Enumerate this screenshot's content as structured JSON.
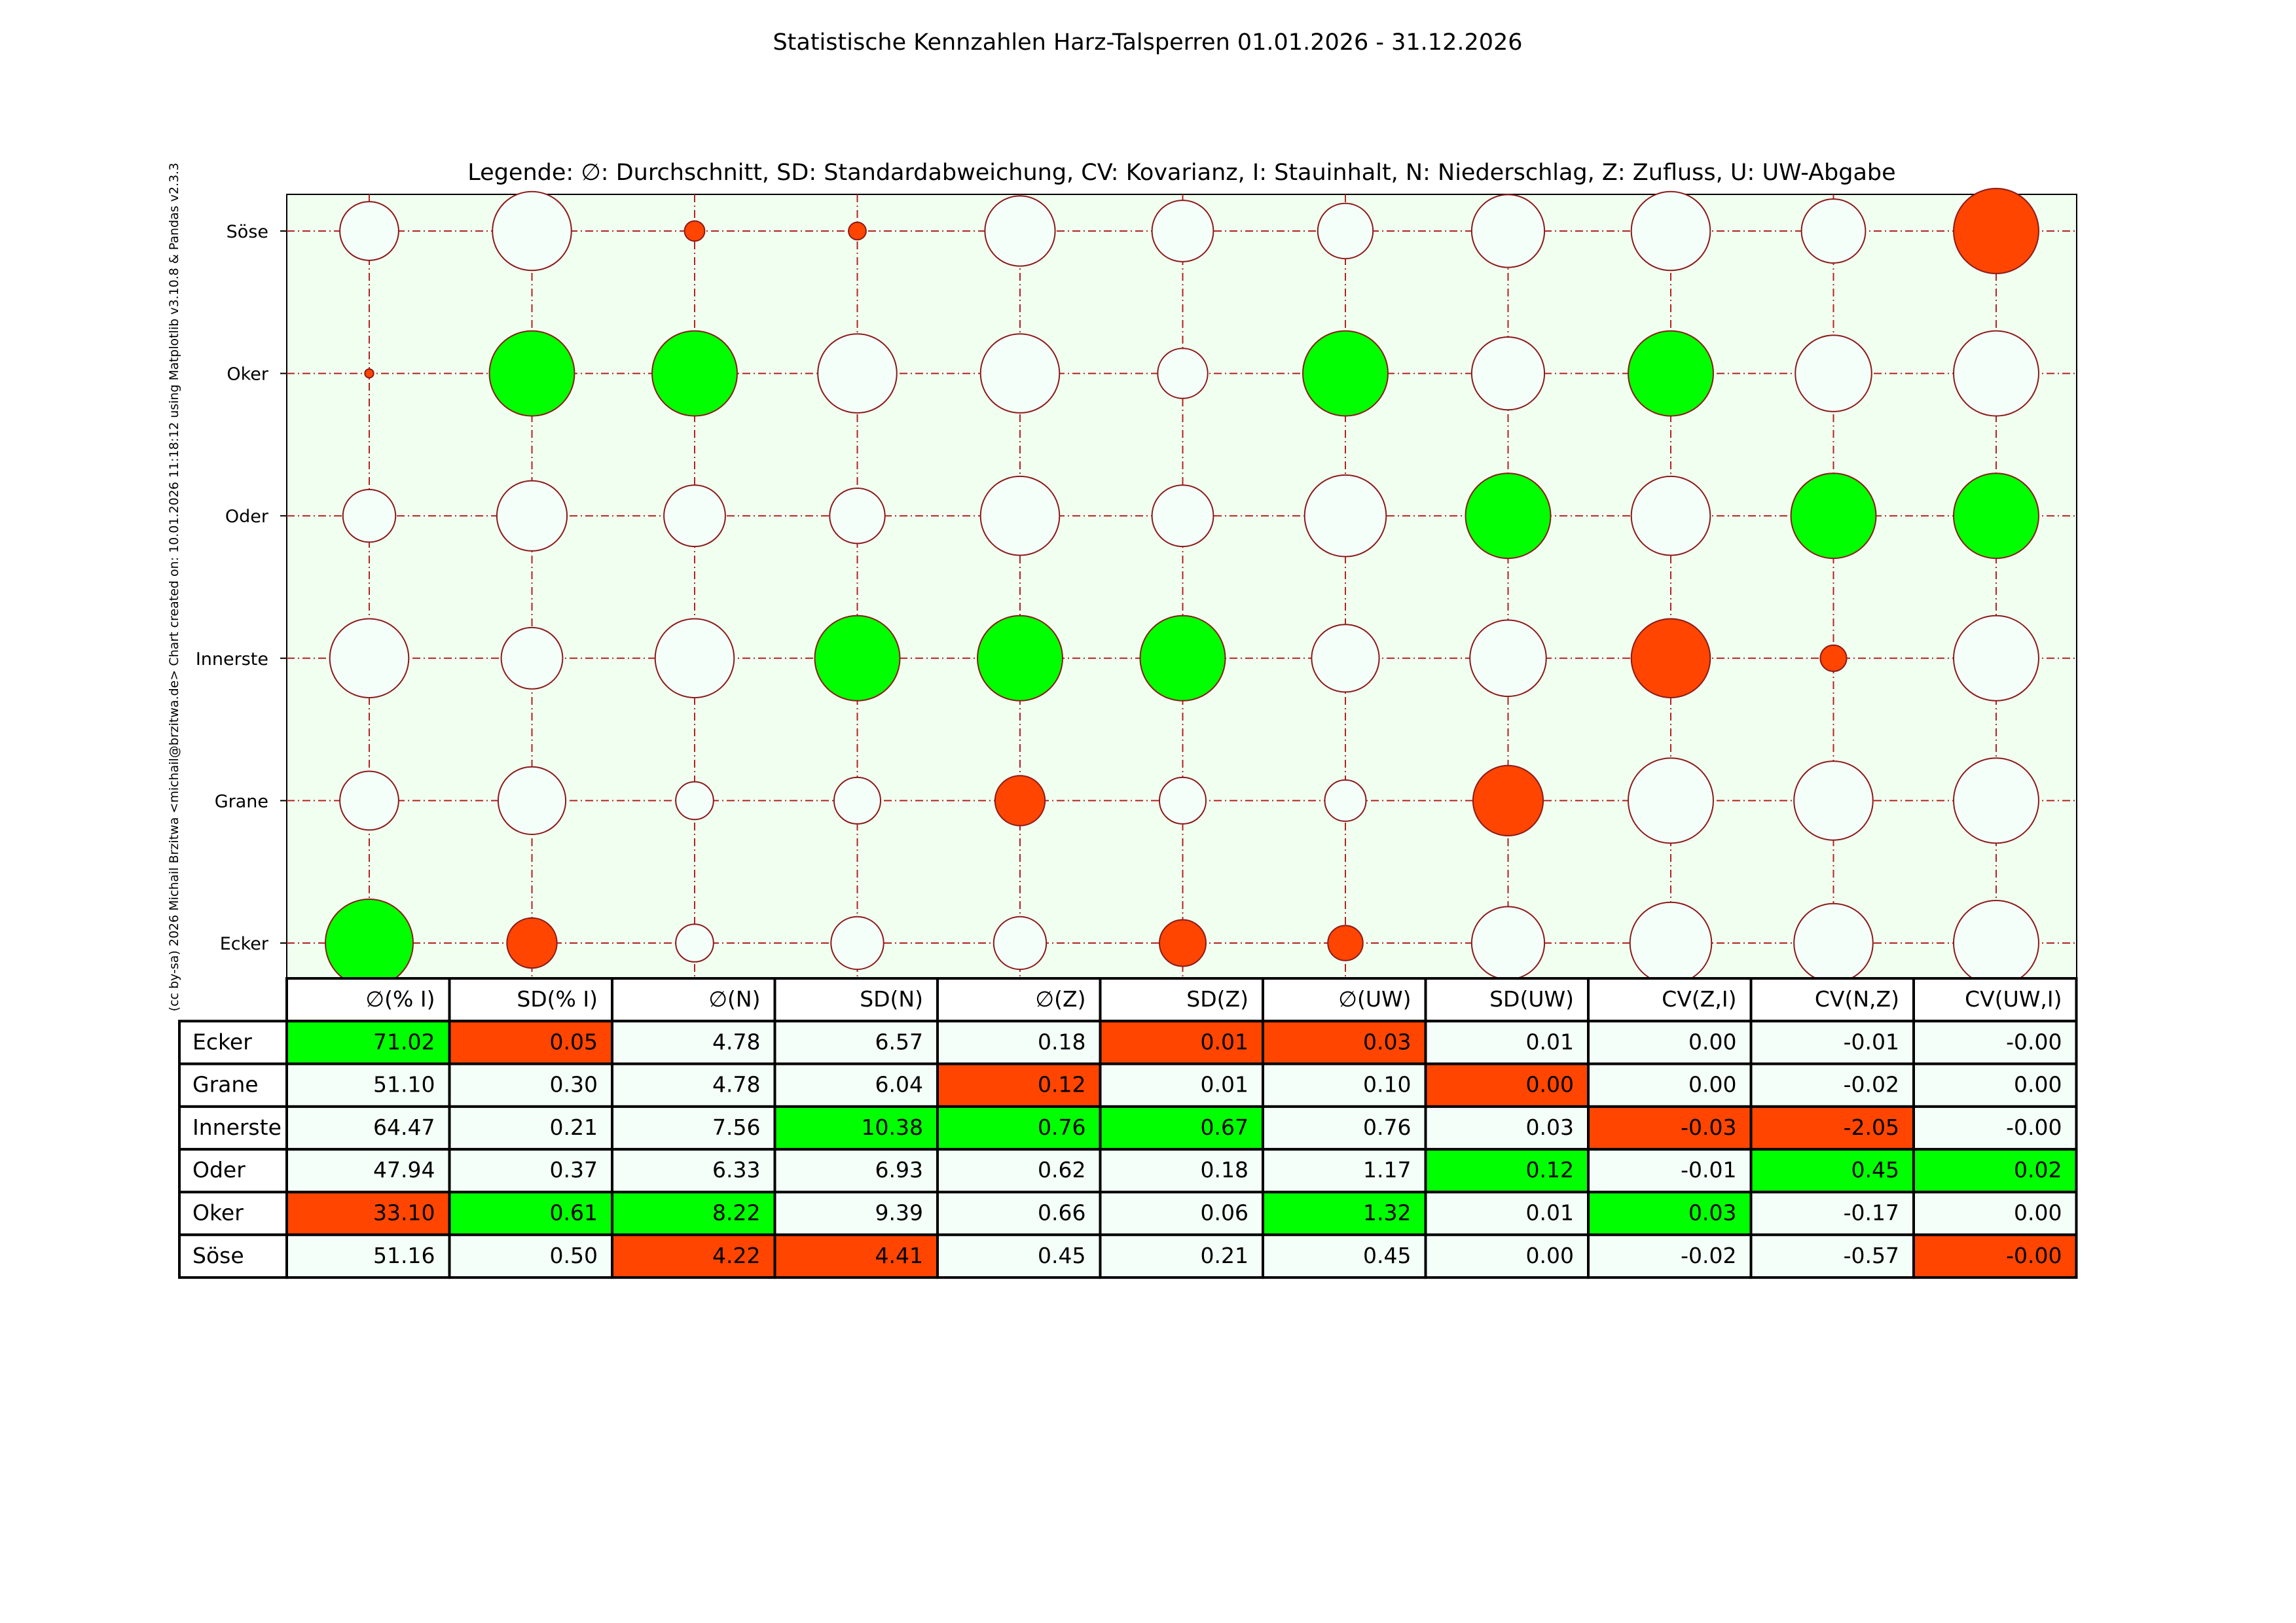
{
  "chart_data": {
    "type": "bubble-table",
    "title": "Statistische Kennzahlen Harz-Talsperren 01.01.2026 - 31.12.2026",
    "subtitle": "Legende: ∅: Durchschnitt, SD: Standardabweichung, CV: Kovarianz, I: Stauinhalt, N: Niederschlag, Z: Zufluss, U: UW-Abgabe",
    "credit": "(cc by-sa) 2026 Michail Brzitwa <michail@brzitwa.de>  Chart created on: 10.01.2026 11:18:12 using Matplotlib v3.10.8 & Pandas v2.3.3",
    "grid": true,
    "colors": {
      "max": "#00ff00",
      "min": "#ff4500",
      "normal": "#f5fffa",
      "plot_background": "#f0fff0",
      "marker_edge": "#8b1a1a",
      "grid": "#b22222"
    },
    "columns": [
      "∅(% I)",
      "SD(% I)",
      "∅(N)",
      "SD(N)",
      "∅(Z)",
      "SD(Z)",
      "∅(UW)",
      "SD(UW)",
      "CV(Z,I)",
      "CV(N,Z)",
      "CV(UW,I)"
    ],
    "rows": [
      {
        "name": "Ecker",
        "values": [
          "71.02",
          "0.05",
          "4.78",
          "6.57",
          "0.18",
          "0.01",
          "0.03",
          "0.01",
          "0.00",
          "-0.01",
          "-0.00"
        ],
        "status": [
          "max",
          "min",
          "normal",
          "normal",
          "normal",
          "min",
          "min",
          "normal",
          "normal",
          "normal",
          "normal"
        ],
        "marker_scale": [
          1.0,
          0.57,
          0.43,
          0.6,
          0.6,
          0.53,
          0.4,
          0.83,
          0.93,
          0.9,
          0.97
        ]
      },
      {
        "name": "Grane",
        "values": [
          "51.10",
          "0.30",
          "4.78",
          "6.04",
          "0.12",
          "0.01",
          "0.10",
          "0.00",
          "0.00",
          "-0.02",
          "0.00"
        ],
        "status": [
          "normal",
          "normal",
          "normal",
          "normal",
          "min",
          "normal",
          "normal",
          "min",
          "normal",
          "normal",
          "normal"
        ],
        "marker_scale": [
          0.67,
          0.77,
          0.43,
          0.53,
          0.57,
          0.53,
          0.47,
          0.8,
          0.97,
          0.9,
          0.97
        ]
      },
      {
        "name": "Innerste",
        "values": [
          "64.47",
          "0.21",
          "7.56",
          "10.38",
          "0.76",
          "0.67",
          "0.76",
          "0.03",
          "-0.03",
          "-2.05",
          "-0.00"
        ],
        "status": [
          "normal",
          "normal",
          "normal",
          "max",
          "max",
          "max",
          "normal",
          "normal",
          "min",
          "min",
          "normal"
        ],
        "marker_scale": [
          0.9,
          0.7,
          0.9,
          0.97,
          0.97,
          0.97,
          0.77,
          0.87,
          0.9,
          0.3,
          0.97
        ]
      },
      {
        "name": "Oder",
        "values": [
          "47.94",
          "0.37",
          "6.33",
          "6.93",
          "0.62",
          "0.18",
          "1.17",
          "0.12",
          "-0.01",
          "0.45",
          "0.02"
        ],
        "status": [
          "normal",
          "normal",
          "normal",
          "normal",
          "normal",
          "normal",
          "normal",
          "max",
          "normal",
          "max",
          "max"
        ],
        "marker_scale": [
          0.6,
          0.8,
          0.7,
          0.63,
          0.9,
          0.7,
          0.93,
          0.97,
          0.9,
          0.97,
          0.97
        ]
      },
      {
        "name": "Oker",
        "values": [
          "33.10",
          "0.61",
          "8.22",
          "9.39",
          "0.66",
          "0.06",
          "1.32",
          "0.01",
          "0.03",
          "-0.17",
          "0.00"
        ],
        "status": [
          "min",
          "max",
          "max",
          "normal",
          "normal",
          "normal",
          "max",
          "normal",
          "max",
          "normal",
          "normal"
        ],
        "marker_scale": [
          0.1,
          0.97,
          0.97,
          0.9,
          0.9,
          0.57,
          0.97,
          0.83,
          0.97,
          0.87,
          0.97
        ]
      },
      {
        "name": "Söse",
        "values": [
          "51.16",
          "0.50",
          "4.22",
          "4.41",
          "0.45",
          "0.21",
          "0.45",
          "0.00",
          "-0.02",
          "-0.57",
          "-0.00"
        ],
        "status": [
          "normal",
          "normal",
          "min",
          "min",
          "normal",
          "normal",
          "normal",
          "normal",
          "normal",
          "normal",
          "min"
        ],
        "marker_scale": [
          0.67,
          0.9,
          0.23,
          0.2,
          0.8,
          0.7,
          0.63,
          0.83,
          0.9,
          0.73,
          0.97
        ]
      }
    ]
  }
}
